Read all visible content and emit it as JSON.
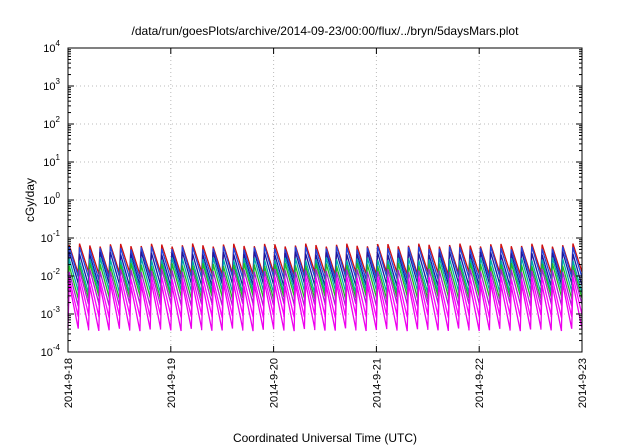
{
  "chart_data": {
    "type": "line",
    "title": "/data/run/goesPlots/archive/2014-09-23/00:00/flux/../bryn/5daysMars.plot",
    "xlabel": "Coordinated Universal Time (UTC)",
    "ylabel": "cGy/day",
    "yscale": "log",
    "ylim": [
      0.0001,
      10000
    ],
    "y_ticks": [
      {
        "value": 0.0001,
        "base": "10",
        "exp": "-4"
      },
      {
        "value": 0.001,
        "base": "10",
        "exp": "-3"
      },
      {
        "value": 0.01,
        "base": "10",
        "exp": "-2"
      },
      {
        "value": 0.1,
        "base": "10",
        "exp": "-1"
      },
      {
        "value": 1,
        "base": "10",
        "exp": "0"
      },
      {
        "value": 10,
        "base": "10",
        "exp": "1"
      },
      {
        "value": 100,
        "base": "10",
        "exp": "2"
      },
      {
        "value": 1000,
        "base": "10",
        "exp": "3"
      },
      {
        "value": 10000,
        "base": "10",
        "exp": "4"
      }
    ],
    "x_ticks": [
      "2014-9-18",
      "2014-9-19",
      "2014-9-20",
      "2014-9-21",
      "2014-9-22",
      "2014-9-23"
    ],
    "xlim": [
      "2014-09-18",
      "2014-09-23"
    ],
    "grid": true,
    "legend": "none",
    "pattern": {
      "cycles_per_day": 10,
      "shape": "sawtooth: sharp rise at cycle start, decay until next rise"
    },
    "series": [
      {
        "color": "#d01010",
        "peak": 0.065,
        "trough": 0.012
      },
      {
        "color": "#2244dd",
        "peak": 0.055,
        "trough": 0.009
      },
      {
        "color": "#1a1aa0",
        "peak": 0.04,
        "trough": 0.006
      },
      {
        "color": "#00aaaa",
        "peak": 0.028,
        "trough": 0.004
      },
      {
        "color": "#22bb22",
        "peak": 0.02,
        "trough": 0.0028
      },
      {
        "color": "#aa22cc",
        "peak": 0.014,
        "trough": 0.0018
      },
      {
        "color": "#ff00ff",
        "peak": 0.009,
        "trough": 0.0009
      },
      {
        "color": "#ee00ee",
        "peak": 0.006,
        "trough": 0.0004
      }
    ]
  }
}
